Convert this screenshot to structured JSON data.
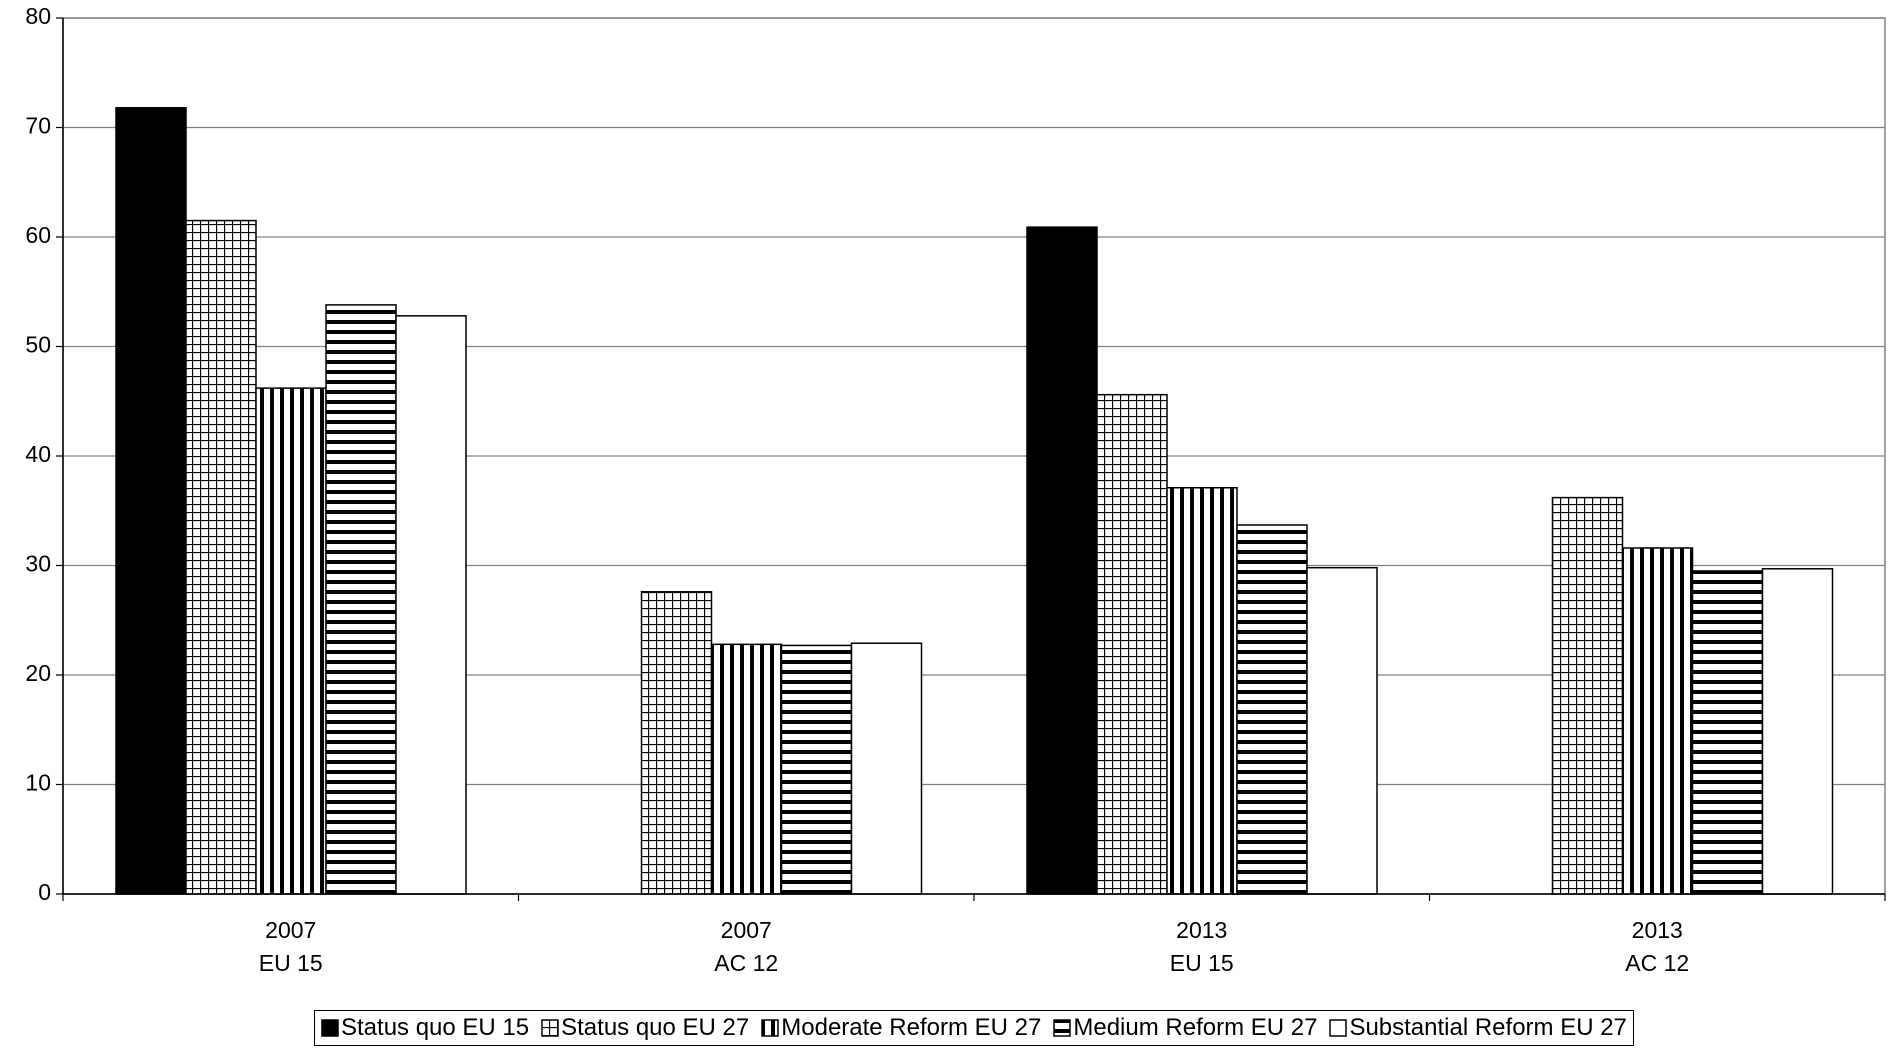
{
  "chart_data": {
    "type": "bar",
    "categories": [
      [
        "2007",
        "EU 15"
      ],
      [
        "2007",
        "AC 12"
      ],
      [
        "2013",
        "EU 15"
      ],
      [
        "2013",
        "AC 12"
      ]
    ],
    "series": [
      {
        "name": "Status quo EU 15",
        "color": "#000000",
        "pattern": "solid",
        "values": [
          71.8,
          null,
          60.9,
          null
        ]
      },
      {
        "name": "Status quo EU 27",
        "color": "#000000",
        "pattern": "grid",
        "values": [
          61.5,
          27.6,
          45.6,
          36.2
        ]
      },
      {
        "name": "Moderate Reform EU 27",
        "color": "#000000",
        "pattern": "vertical",
        "values": [
          46.2,
          22.8,
          37.1,
          31.6
        ]
      },
      {
        "name": "Medium Reform EU 27",
        "color": "#000000",
        "pattern": "horizontal",
        "values": [
          53.8,
          22.7,
          33.7,
          29.5
        ]
      },
      {
        "name": "Substantial Reform EU 27",
        "color": "#000000",
        "pattern": "none",
        "values": [
          52.8,
          22.9,
          29.8,
          29.7
        ]
      }
    ],
    "ylim": [
      0,
      80
    ],
    "yticks": [
      0,
      10,
      20,
      30,
      40,
      50,
      60,
      70,
      80
    ],
    "grid": true,
    "legend": "bottom"
  }
}
